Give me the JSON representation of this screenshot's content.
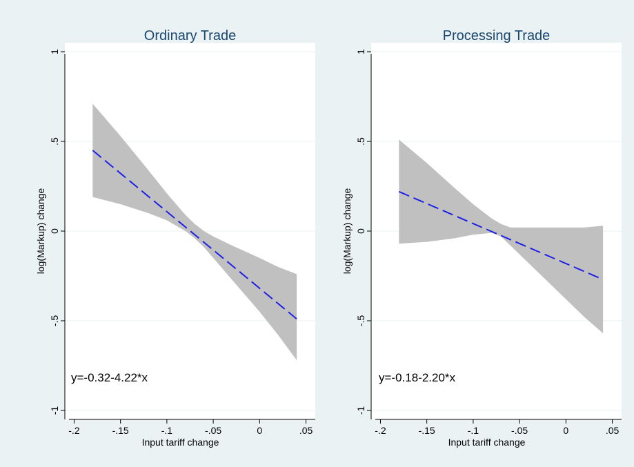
{
  "colors": {
    "background": "#eaf2f3",
    "plot_background": "#ffffff",
    "confidence_band": "#c0c0c0",
    "fit_line": "#1f1fe6",
    "title": "#1a476f"
  },
  "chart_data": [
    {
      "type": "line",
      "title": "Ordinary Trade",
      "xlabel": "Input tariff change",
      "ylabel": "log(Markup) change",
      "xlim": [
        -0.21,
        0.06
      ],
      "ylim": [
        -1.05,
        1.05
      ],
      "x_ticks": [
        -0.2,
        -0.15,
        -0.1,
        -0.05,
        0,
        0.05
      ],
      "x_tick_labels": [
        "-.2",
        "-.15",
        "-.1",
        "-.05",
        "0",
        ".05"
      ],
      "y_ticks": [
        -1,
        -0.5,
        0,
        0.5,
        1
      ],
      "y_tick_labels": [
        "-1",
        "-.5",
        "0",
        ".5",
        "1"
      ],
      "grid": true,
      "annotation": "y=-0.32-4.22*x",
      "series": [
        {
          "style": "dashed",
          "x": [
            -0.18,
            0.04
          ],
          "y": [
            0.45,
            -0.49
          ]
        }
      ],
      "band": {
        "x": [
          -0.18,
          -0.15,
          -0.12,
          -0.1,
          -0.09,
          -0.08,
          -0.07,
          -0.06,
          -0.05,
          -0.03,
          0,
          0.02,
          0.04
        ],
        "upper": [
          0.71,
          0.53,
          0.34,
          0.21,
          0.15,
          0.09,
          0.04,
          0.0,
          -0.03,
          -0.08,
          -0.15,
          -0.2,
          -0.24
        ],
        "lower": [
          0.19,
          0.15,
          0.1,
          0.06,
          0.03,
          0.0,
          -0.04,
          -0.09,
          -0.15,
          -0.27,
          -0.45,
          -0.58,
          -0.72
        ]
      }
    },
    {
      "type": "line",
      "title": "Processing Trade",
      "xlabel": "Input tariff change",
      "ylabel": "log(Markup) change",
      "xlim": [
        -0.21,
        0.06
      ],
      "ylim": [
        -1.05,
        1.05
      ],
      "x_ticks": [
        -0.2,
        -0.15,
        -0.1,
        -0.05,
        0,
        0.05
      ],
      "x_tick_labels": [
        "-.2",
        "-.15",
        "-.1",
        "-.05",
        "0",
        ".05"
      ],
      "y_ticks": [
        -1,
        -0.5,
        0,
        0.5,
        1
      ],
      "y_tick_labels": [
        "-1",
        "-.5",
        "0",
        ".5",
        "1"
      ],
      "grid": true,
      "annotation": "y=-0.18-2.20*x",
      "series": [
        {
          "style": "dashed",
          "x": [
            -0.18,
            0.04
          ],
          "y": [
            0.22,
            -0.27
          ]
        }
      ],
      "band": {
        "x": [
          -0.18,
          -0.15,
          -0.12,
          -0.1,
          -0.08,
          -0.07,
          -0.06,
          -0.05,
          -0.03,
          0,
          0.02,
          0.04
        ],
        "upper": [
          0.51,
          0.38,
          0.24,
          0.15,
          0.07,
          0.04,
          0.02,
          0.02,
          0.02,
          0.02,
          0.02,
          0.03
        ],
        "lower": [
          -0.07,
          -0.06,
          -0.04,
          -0.02,
          -0.01,
          -0.03,
          -0.08,
          -0.13,
          -0.23,
          -0.38,
          -0.48,
          -0.57
        ]
      }
    }
  ]
}
